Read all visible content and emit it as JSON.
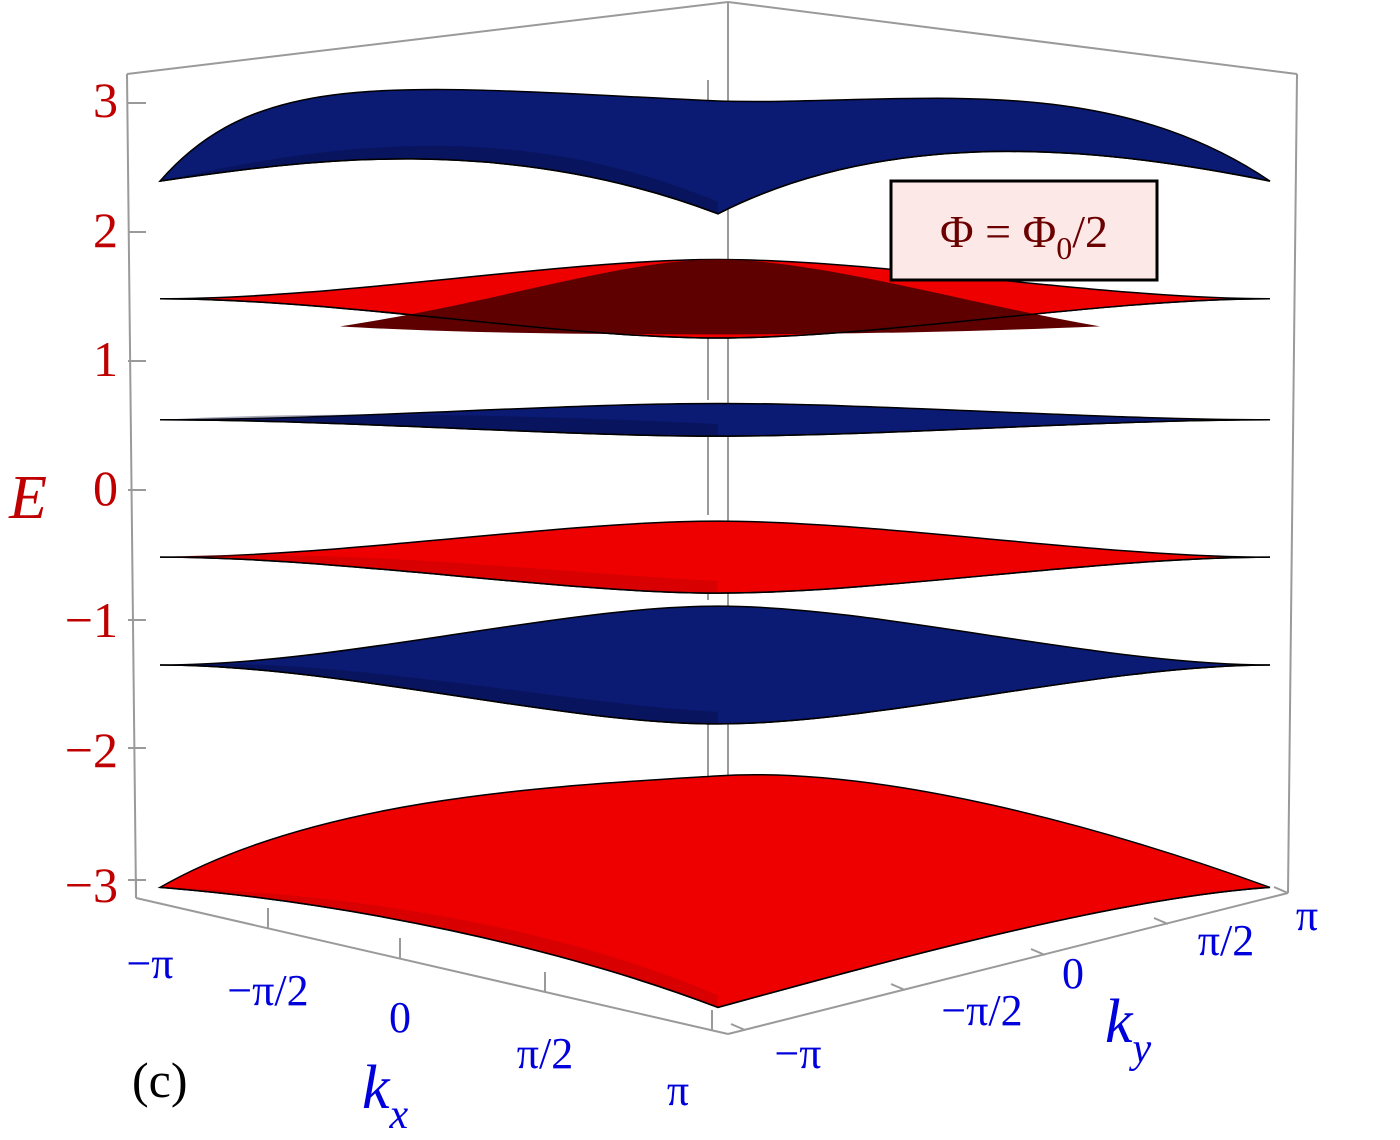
{
  "chart_data": {
    "type": "surface3d",
    "title": "",
    "annotation": {
      "text": "Φ = Φ",
      "subscript": "0",
      "suffix": "/2",
      "text_color": "#6b0000",
      "box_fill": "#fde8e8"
    },
    "panel_label": "(c)",
    "axes": {
      "e": {
        "label": "E",
        "color": "#c00000",
        "ticks": [
          "3",
          "2",
          "1",
          "0",
          "−1",
          "−2",
          "−3"
        ],
        "range": [
          -3.2,
          3.2
        ]
      },
      "kx": {
        "label": "k",
        "label_sub": "x",
        "color": "#0000dd",
        "ticks": [
          "−π",
          "−π/2",
          "0",
          "π/2",
          "π"
        ],
        "range": [
          "−π",
          "π"
        ]
      },
      "ky": {
        "label": "k",
        "label_sub": "y",
        "color": "#0000dd",
        "ticks": [
          "−π",
          "−π/2",
          "0",
          "π/2",
          "π"
        ],
        "range": [
          "−π",
          "π"
        ]
      }
    },
    "series": [
      {
        "band": 1,
        "color": "#ee0000",
        "energy_min": -3.0,
        "energy_max": -2.3
      },
      {
        "band": 2,
        "color": "#0b1a73",
        "energy_min": -1.75,
        "energy_max": -0.85
      },
      {
        "band": 3,
        "color": "#ee0000",
        "energy_min": -0.75,
        "energy_max": -0.2
      },
      {
        "band": 4,
        "color": "#0b1a73",
        "energy_min": 0.45,
        "energy_max": 0.7
      },
      {
        "band": 5,
        "color": "#ee0000",
        "energy_min": 1.2,
        "energy_max": 1.8
      },
      {
        "band": 6,
        "color": "#0b1a73",
        "energy_min": 2.15,
        "energy_max": 3.05
      }
    ],
    "grid": false
  }
}
